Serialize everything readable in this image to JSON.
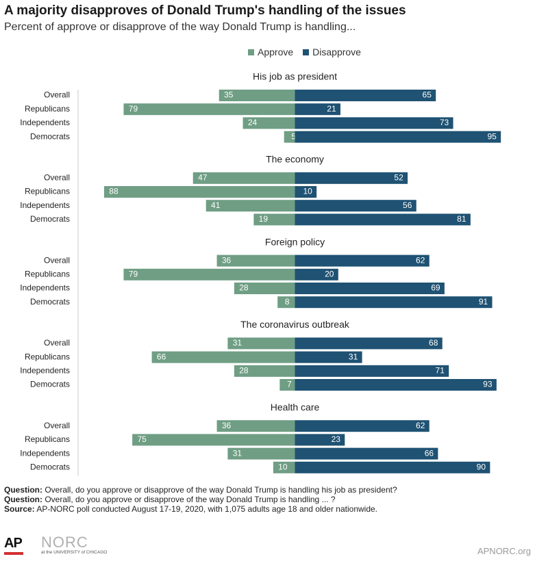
{
  "header": {
    "title": "A majority disapproves of Donald Trump's handling of the issues",
    "subtitle": "Percent of approve or disapprove of the way Donald Trump is handling..."
  },
  "legend": {
    "approve_label": "Approve",
    "disapprove_label": "Disapprove"
  },
  "colors": {
    "approve": "#6f9e84",
    "disapprove": "#1f5273",
    "axis": "#c8c8c8"
  },
  "chart_data": {
    "type": "bar",
    "orientation": "diverging-horizontal",
    "groups": [
      {
        "title": "His job as president",
        "categories": [
          "Overall",
          "Republicans",
          "Independents",
          "Democrats"
        ],
        "series": [
          {
            "name": "Approve",
            "values": [
              35,
              79,
              24,
              5
            ]
          },
          {
            "name": "Disapprove",
            "values": [
              65,
              21,
              73,
              95
            ]
          }
        ]
      },
      {
        "title": "The economy",
        "categories": [
          "Overall",
          "Republicans",
          "Independents",
          "Democrats"
        ],
        "series": [
          {
            "name": "Approve",
            "values": [
              47,
              88,
              41,
              19
            ]
          },
          {
            "name": "Disapprove",
            "values": [
              52,
              10,
              56,
              81
            ]
          }
        ]
      },
      {
        "title": "Foreign policy",
        "categories": [
          "Overall",
          "Republicans",
          "Independents",
          "Democrats"
        ],
        "series": [
          {
            "name": "Approve",
            "values": [
              36,
              79,
              28,
              8
            ]
          },
          {
            "name": "Disapprove",
            "values": [
              62,
              20,
              69,
              91
            ]
          }
        ]
      },
      {
        "title": "The coronavirus outbreak",
        "categories": [
          "Overall",
          "Republicans",
          "Independents",
          "Democrats"
        ],
        "series": [
          {
            "name": "Approve",
            "values": [
              31,
              66,
              28,
              7
            ]
          },
          {
            "name": "Disapprove",
            "values": [
              68,
              31,
              71,
              93
            ]
          }
        ]
      },
      {
        "title": "Health care",
        "categories": [
          "Overall",
          "Republicans",
          "Independents",
          "Democrats"
        ],
        "series": [
          {
            "name": "Approve",
            "values": [
              36,
              75,
              31,
              10
            ]
          },
          {
            "name": "Disapprove",
            "values": [
              62,
              23,
              66,
              90
            ]
          }
        ]
      }
    ]
  },
  "notes": {
    "question1_label": "Question:",
    "question1_text": " Overall, do you approve or disapprove of the way Donald Trump is handling his job as president?",
    "question2_label": "Question:",
    "question2_text": " Overall, do you approve or disapprove of the way Donald Trump is handling ... ?",
    "source_label": "Source:",
    "source_text": " AP-NORC poll conducted August 17-19, 2020, with 1,075 adults age 18 and older nationwide."
  },
  "footer": {
    "ap_logo": "AP",
    "norc_logo": "NORC",
    "norc_sub": "at the UNIVERSITY of CHICAGO",
    "credit": "APNORC.org"
  }
}
